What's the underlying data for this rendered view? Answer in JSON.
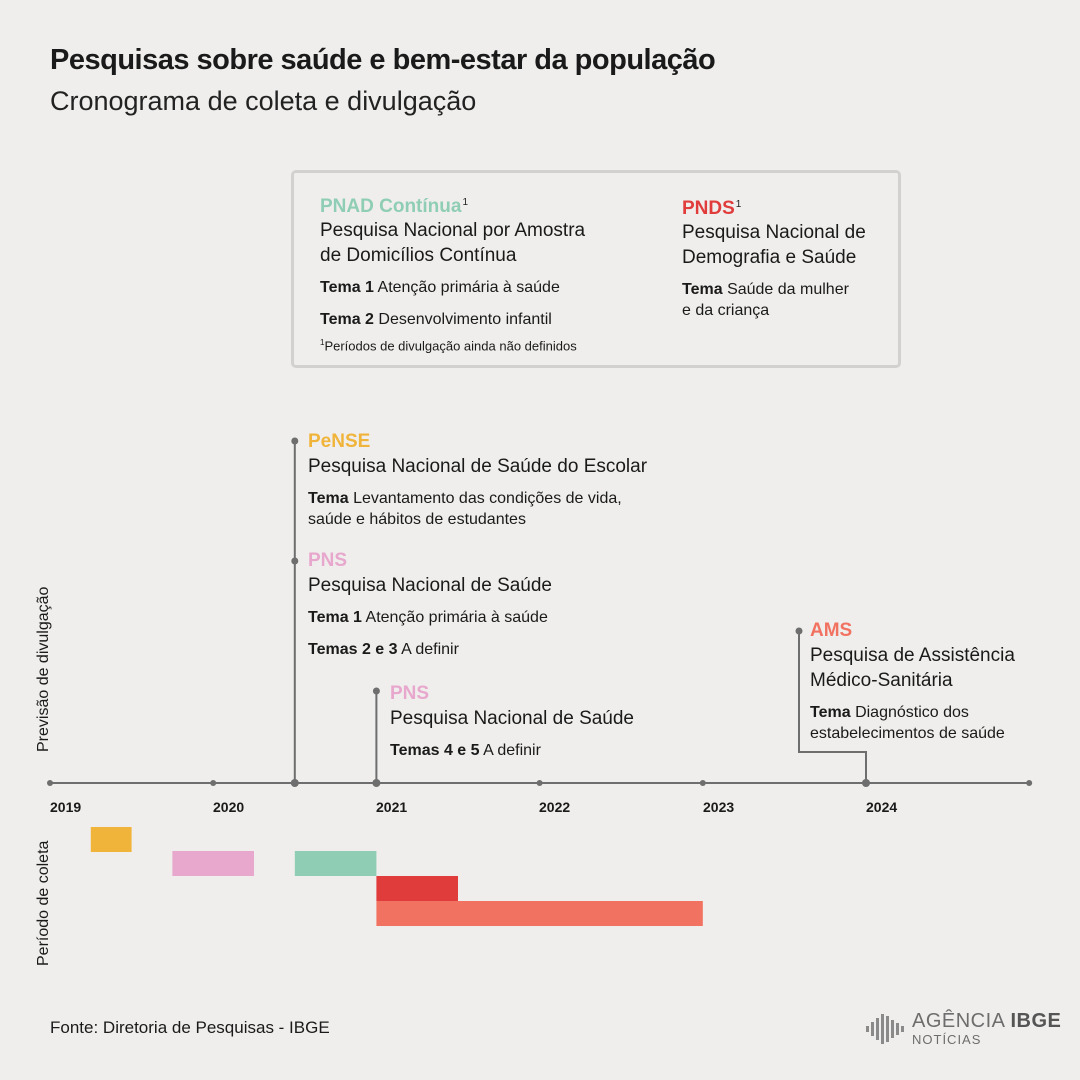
{
  "header": {
    "title": "Pesquisas sobre saúde e bem-estar da população",
    "subtitle": "Cronograma de coleta e divulgação"
  },
  "legend": {
    "pnad": {
      "acronym": "PNAD Contínua",
      "sup": "1",
      "full_line1": "Pesquisa Nacional por Amostra",
      "full_line2": "de Domicílios Contínua",
      "tema1_label": "Tema 1",
      "tema1_text": "Atenção primária à saúde",
      "tema2_label": "Tema 2",
      "tema2_text": "Desenvolvimento infantil",
      "note_sup": "1",
      "note": "Períodos de divulgação ainda não definidos"
    },
    "pnds": {
      "acronym": "PNDS",
      "sup": "1",
      "full_line1": "Pesquisa Nacional de",
      "full_line2": "Demografia e Saúde",
      "tema_label": "Tema",
      "tema_line1": "Saúde da mulher",
      "tema_line2": "e da criança"
    }
  },
  "releases": {
    "pense": {
      "acronym": "PeNSE",
      "full": "Pesquisa Nacional de Saúde do Escolar",
      "tema_label": "Tema",
      "tema_line1": "Levantamento das condições de vida,",
      "tema_line2": "saúde e hábitos de estudantes"
    },
    "pns_a": {
      "acronym": "PNS",
      "full": "Pesquisa Nacional de Saúde",
      "tema1_label": "Tema 1",
      "tema1_text": "Atenção primária à saúde",
      "tema2_label": "Temas 2 e 3",
      "tema2_text": "A definir"
    },
    "pns_b": {
      "acronym": "PNS",
      "full": "Pesquisa Nacional de Saúde",
      "tema_label": "Temas 4 e 5",
      "tema_text": "A definir"
    },
    "ams": {
      "acronym": "AMS",
      "full_line1": "Pesquisa de Assistência",
      "full_line2": "Médico-Sanitária",
      "tema_label": "Tema",
      "tema_line1": "Diagnóstico dos",
      "tema_line2": "estabelecimentos de saúde"
    }
  },
  "axis": {
    "release_label": "Previsão de divulgação",
    "collection_label": "Período de coleta",
    "years": [
      "2019",
      "2020",
      "2021",
      "2022",
      "2023",
      "2024"
    ]
  },
  "colors": {
    "pense": "#f0b43a",
    "pns": "#e8a7cd",
    "pnad": "#8fceb5",
    "pnds": "#e03c3c",
    "ams": "#f27261",
    "axis": "#6e6e6e"
  },
  "collection_periods": [
    {
      "survey": "PeNSE",
      "start": 2019.25,
      "end": 2019.5,
      "color": "#f0b43a"
    },
    {
      "survey": "PNS",
      "start": 2019.75,
      "end": 2020.25,
      "color": "#e8a7cd"
    },
    {
      "survey": "PNAD Contínua",
      "start": 2020.5,
      "end": 2021.0,
      "color": "#8fceb5"
    },
    {
      "survey": "PNDS",
      "start": 2021.0,
      "end": 2021.5,
      "color": "#e03c3c"
    },
    {
      "survey": "AMS",
      "start": 2021.0,
      "end": 2023.0,
      "color": "#f27261"
    }
  ],
  "release_dates": [
    {
      "survey": "PeNSE",
      "date": 2020.5
    },
    {
      "survey": "PNS",
      "date": 2020.5
    },
    {
      "survey": "PNS",
      "date": 2021.0
    },
    {
      "survey": "AMS",
      "date": 2024.0
    }
  ],
  "footer": {
    "source": "Fonte: Diretoria de Pesquisas - IBGE",
    "logo_word1": "AGÊNCIA",
    "logo_word2": "IBGE",
    "logo_sub": "NOTÍCIAS"
  }
}
